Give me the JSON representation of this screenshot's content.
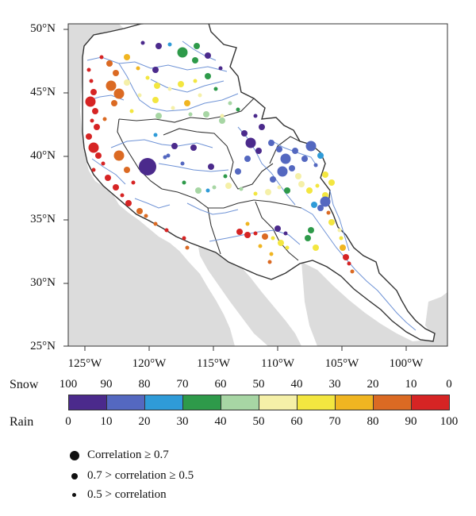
{
  "map": {
    "lat_labels": [
      "50°N",
      "45°N",
      "40°N",
      "35°N",
      "30°N",
      "25°N"
    ],
    "lon_labels": [
      "125°W",
      "120°W",
      "115°W",
      "110°W",
      "105°W",
      "100°W"
    ],
    "colors": {
      "land": "#dcdcdc",
      "river": "#6f93d6",
      "boundary": "#333333",
      "ocean": "#ffffff"
    }
  },
  "scale": {
    "snow_label": "Snow",
    "rain_label": "Rain",
    "snow_ticks": [
      "100",
      "90",
      "80",
      "70",
      "60",
      "50",
      "40",
      "30",
      "20",
      "10",
      "0"
    ],
    "rain_ticks": [
      "0",
      "10",
      "20",
      "30",
      "40",
      "50",
      "60",
      "70",
      "80",
      "90",
      "100"
    ],
    "colors": [
      "#4b2a8c",
      "#5468c0",
      "#2f9bd8",
      "#2e9a4a",
      "#a7d6a4",
      "#f5f0a8",
      "#f3e640",
      "#f0b521",
      "#db6a23",
      "#d62424"
    ]
  },
  "legend": {
    "items": [
      {
        "label": "Correlation ≥ 0.7",
        "size": "large"
      },
      {
        "label": "0.7 > correlation ≥ 0.5",
        "size": "medium"
      },
      {
        "label": "0.5 > correlation",
        "size": "small"
      }
    ]
  }
}
